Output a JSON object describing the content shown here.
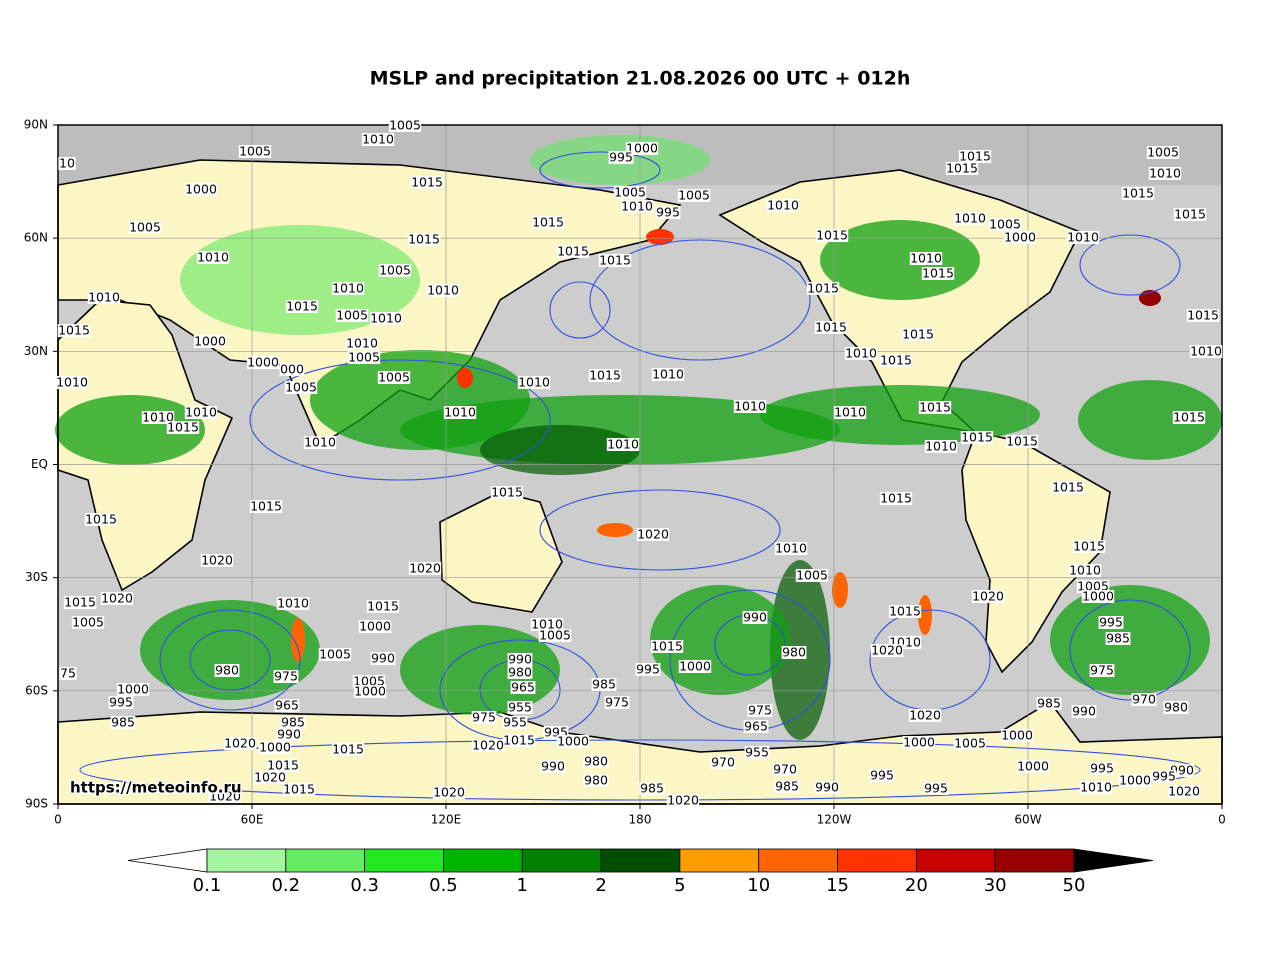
{
  "title": "MSLP and precipitation 21.08.2026 00 UTC + 012h",
  "map": {
    "xlim": [
      0,
      360
    ],
    "ylim": [
      -90,
      90
    ],
    "xticks": [
      0,
      {
        "value": 60,
        "label": "60E"
      },
      {
        "value": 120,
        "label": "120E"
      },
      180,
      {
        "value": 240,
        "label": "120W"
      },
      {
        "value": 300,
        "label": "60W"
      },
      {
        "value": 360,
        "label": "0"
      }
    ],
    "yticks": [
      {
        "value": 90,
        "label": "90N"
      },
      {
        "value": 60,
        "label": "60N"
      },
      {
        "value": 30,
        "label": "30N"
      },
      {
        "value": 0,
        "label": "EQ"
      },
      {
        "value": -30,
        "label": "30S"
      },
      {
        "value": -60,
        "label": "60S"
      },
      {
        "value": -90,
        "label": "90S"
      }
    ],
    "grid": true
  },
  "colorbar": {
    "levels": [
      0.1,
      0.2,
      0.3,
      0.5,
      1,
      2,
      5,
      10,
      15,
      20,
      30,
      50
    ],
    "colors": [
      "#a4f5a0",
      "#66ec62",
      "#22e822",
      "#00b400",
      "#008200",
      "#004e00",
      "#ff9c00",
      "#ff6400",
      "#ff3200",
      "#c80000",
      "#960000"
    ],
    "under_color": "#ffffff",
    "over_color": "#000000"
  },
  "isobar_labels": [
    "1005",
    "1010",
    "1005",
    "10",
    "1000",
    "995",
    "1000",
    "1015",
    "1005",
    "1005",
    "1010",
    "995",
    "1010",
    "1015",
    "1015",
    "1005",
    "1010",
    "1015",
    "1015",
    "1005",
    "1015",
    "1015",
    "1015",
    "1010",
    "1005",
    "1000",
    "1010",
    "1010",
    "1015",
    "1015",
    "1010",
    "1015",
    "1005",
    "1010",
    "1010",
    "1015",
    "1010",
    "1015",
    "1005",
    "1010",
    "1015",
    "1015",
    "1015",
    "1015",
    "1000",
    "1010",
    "1005",
    "1010",
    "1015",
    "1010",
    "1000",
    "000",
    "1005",
    "1005",
    "1010",
    "1015",
    "1010",
    "1010",
    "1010",
    "1010",
    "1015",
    "1010",
    "1010",
    "1010",
    "1015",
    "1015",
    "1010",
    "1010",
    "1010",
    "1015",
    "1015",
    "1015",
    "1015",
    "1015",
    "1015",
    "1015",
    "1020",
    "1020",
    "1010",
    "1015",
    "1020",
    "1005",
    "1010",
    "1005",
    "1000",
    "1020",
    "1015",
    "1020",
    "1010",
    "1015",
    "1015",
    "1005",
    "1000",
    "1010",
    "1005",
    "990",
    "995",
    "985",
    "1005",
    "990",
    "1015",
    "1010",
    "1020",
    "980",
    "990",
    "1000",
    "995",
    "980",
    "975",
    "975",
    "75",
    "980",
    "1005",
    "1000",
    "1000",
    "965",
    "985",
    "970",
    "980",
    "995",
    "965",
    "955",
    "975",
    "985",
    "990",
    "975",
    "1020",
    "975",
    "985",
    "985",
    "965",
    "955",
    "995",
    "990",
    "1020",
    "1000",
    "1000",
    "1000",
    "1005",
    "1015",
    "1000",
    "1020",
    "1015",
    "955",
    "970",
    "1015",
    "1000",
    "990",
    "980",
    "970",
    "995",
    "990",
    "1020",
    "1000",
    "995",
    "995",
    "980",
    "1015",
    "985",
    "985",
    "990",
    "995",
    "1010",
    "1020",
    "1020",
    "1020",
    "1020"
  ],
  "watermark": "https://meteoinfo.ru"
}
